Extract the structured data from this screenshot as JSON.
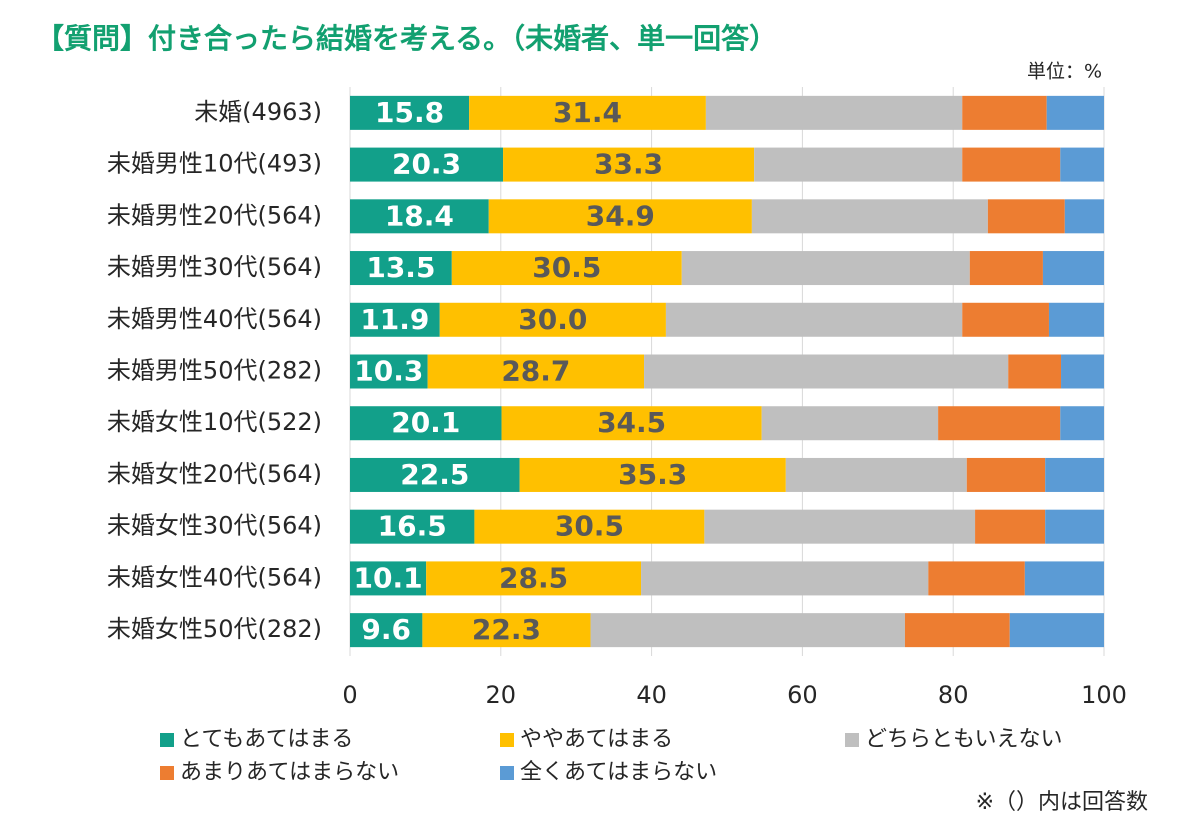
{
  "chart_data": {
    "type": "stacked_barh",
    "title": "【質問】付き合ったら結婚を考える。（未婚者、単一回答）",
    "unit_label": "単位：%",
    "note": "※（）内は回答数",
    "categories": [
      "未婚(4963)",
      "未婚男性10代(493)",
      "未婚男性20代(564)",
      "未婚男性30代(564)",
      "未婚男性40代(564)",
      "未婚男性50代(282)",
      "未婚女性10代(522)",
      "未婚女性20代(564)",
      "未婚女性30代(564)",
      "未婚女性40代(564)",
      "未婚女性50代(282)"
    ],
    "series": [
      {
        "name": "とてもあてはまる",
        "color": "#12a08a",
        "label_color": "#ffffff",
        "values": [
          15.8,
          20.3,
          18.4,
          13.5,
          11.9,
          10.3,
          20.1,
          22.5,
          16.5,
          10.1,
          9.6
        ],
        "value_labels": [
          "15.8",
          "20.3",
          "18.4",
          "13.5",
          "11.9",
          "10.3",
          "20.1",
          "22.5",
          "16.5",
          "10.1",
          "9.6"
        ]
      },
      {
        "name": "ややあてはまる",
        "color": "#ffc000",
        "label_color": "#595959",
        "values": [
          31.4,
          33.3,
          34.9,
          30.5,
          30.0,
          28.7,
          34.5,
          35.3,
          30.5,
          28.5,
          22.3
        ],
        "value_labels": [
          "31.4",
          "33.3",
          "34.9",
          "30.5",
          "30.0",
          "28.7",
          "34.5",
          "35.3",
          "30.5",
          "28.5",
          "22.3"
        ]
      },
      {
        "name": "どちらともいえない",
        "color": "#bfbfbf",
        "values": [
          34.0,
          27.6,
          31.3,
          38.2,
          39.3,
          48.3,
          23.4,
          24.0,
          35.9,
          38.1,
          41.7
        ]
      },
      {
        "name": "あまりあてはまらない",
        "color": "#ed7d31",
        "values": [
          11.2,
          13.0,
          10.2,
          9.7,
          11.5,
          7.0,
          16.2,
          10.4,
          9.3,
          12.8,
          13.9
        ]
      },
      {
        "name": "全くあてはまらない",
        "color": "#5b9bd5",
        "values": [
          7.6,
          5.8,
          5.2,
          8.1,
          7.3,
          5.7,
          5.8,
          7.8,
          7.8,
          10.5,
          12.5
        ]
      }
    ],
    "xlim": [
      0,
      100
    ],
    "xticks": [
      0,
      20,
      40,
      60,
      80,
      100
    ],
    "grid": true,
    "legend": "bottom",
    "title_color": "#12a070"
  }
}
